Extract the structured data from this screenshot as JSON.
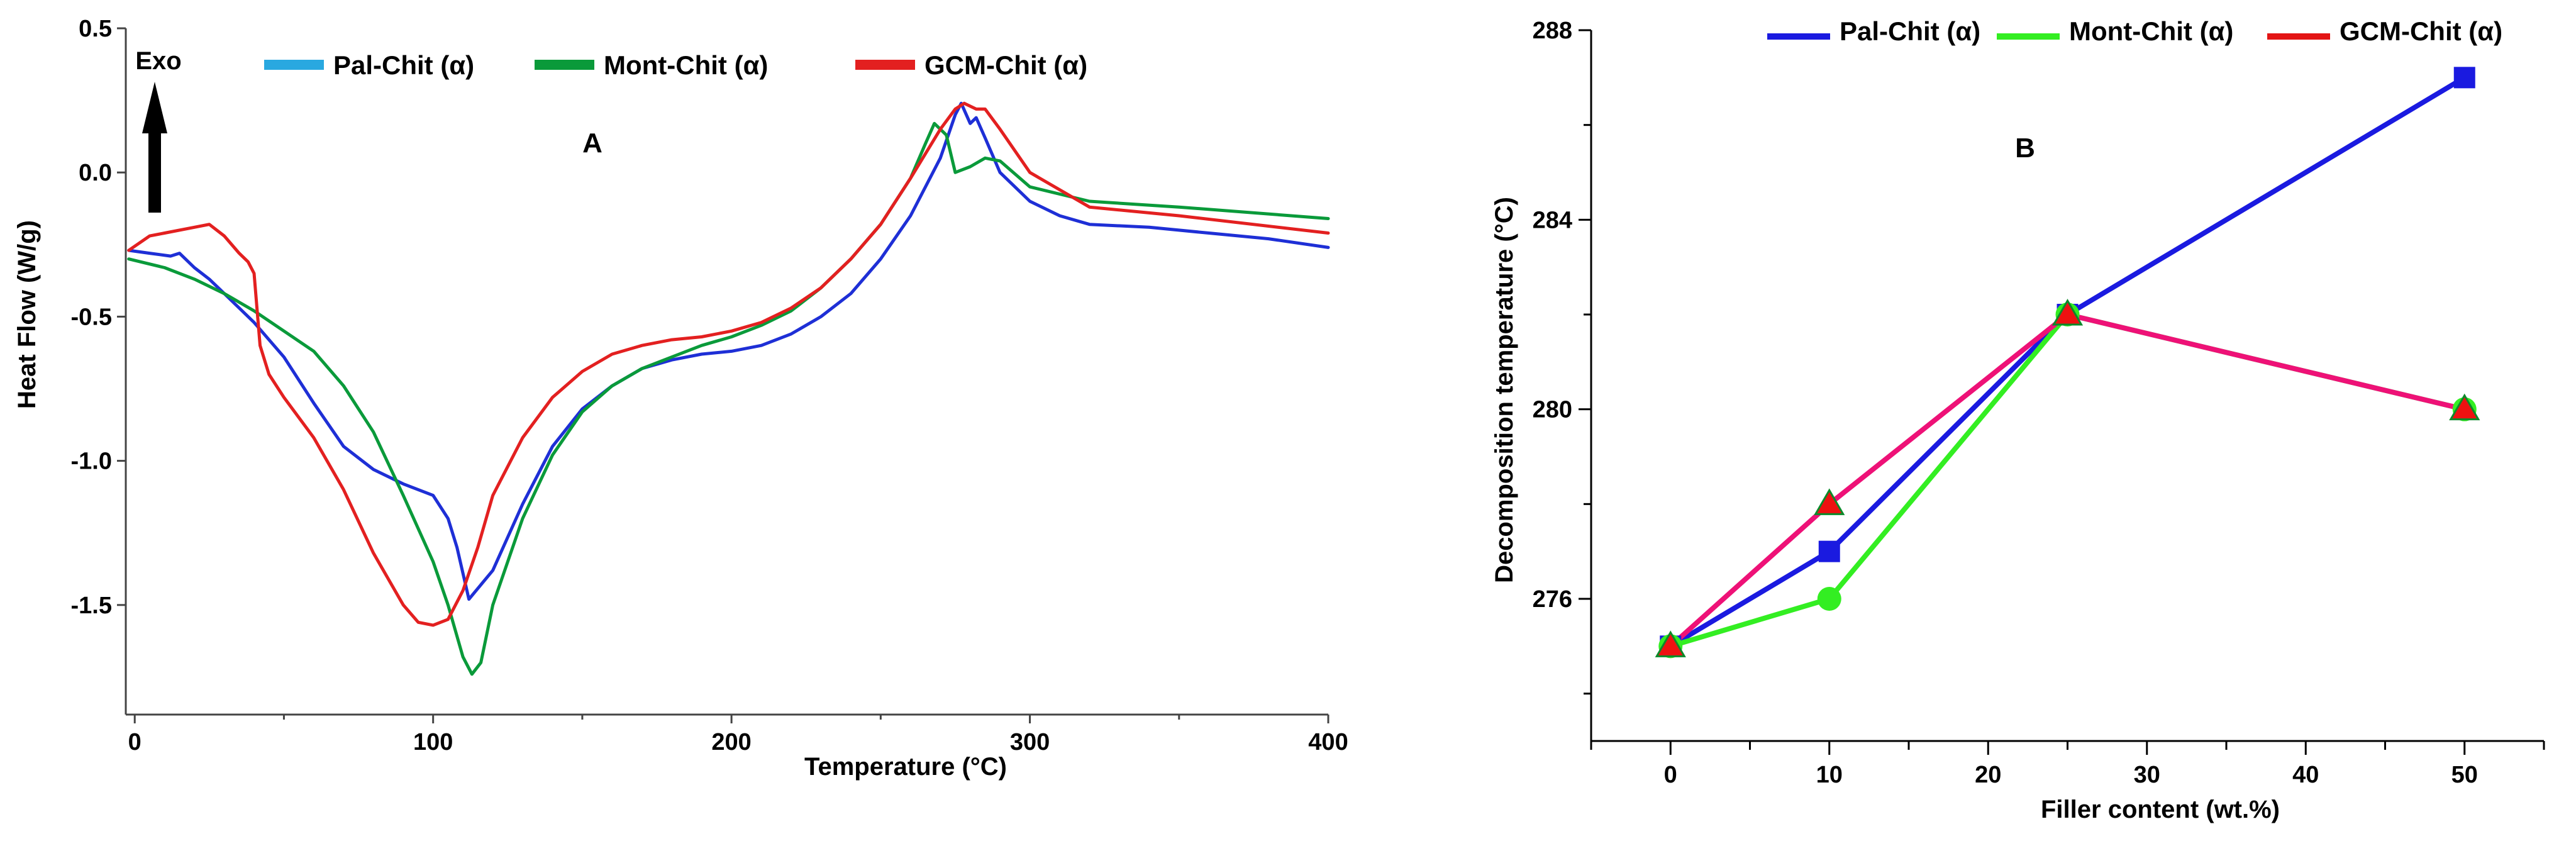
{
  "chart_data": [
    {
      "type": "line",
      "panel_label": "A",
      "xlabel": "Temperature (°C)",
      "ylabel": "Heat Flow  (W/g)",
      "xlim": [
        -3,
        400
      ],
      "ylim": [
        -1.88,
        0.5
      ],
      "x_ticks": [
        0,
        100,
        200,
        300,
        400
      ],
      "x_tick_labels": [
        "0",
        "100",
        "200",
        "300",
        "400"
      ],
      "y_ticks": [
        0.5,
        0.0,
        -0.5,
        -1.0,
        -1.5
      ],
      "y_tick_labels": [
        "0.5",
        "0.0",
        "-0.5",
        "-1.0",
        "-1.5"
      ],
      "annotation": "Exo",
      "grid": false,
      "legend_position": "top",
      "series": [
        {
          "name": "Pal-Chit (α)",
          "color": "#1e2fd6",
          "legend_color": "#29a8e0",
          "x": [
            -2,
            5,
            12,
            15,
            20,
            25,
            30,
            40,
            50,
            60,
            70,
            80,
            90,
            100,
            105,
            108,
            112,
            120,
            130,
            140,
            150,
            160,
            170,
            180,
            190,
            200,
            210,
            220,
            230,
            240,
            250,
            260,
            270,
            275,
            277,
            280,
            282,
            285,
            290,
            300,
            310,
            320,
            340,
            360,
            380,
            400
          ],
          "y": [
            -0.27,
            -0.28,
            -0.29,
            -0.28,
            -0.33,
            -0.37,
            -0.42,
            -0.52,
            -0.64,
            -0.8,
            -0.95,
            -1.03,
            -1.08,
            -1.12,
            -1.2,
            -1.3,
            -1.48,
            -1.38,
            -1.15,
            -0.95,
            -0.82,
            -0.74,
            -0.68,
            -0.65,
            -0.63,
            -0.62,
            -0.6,
            -0.56,
            -0.5,
            -0.42,
            -0.3,
            -0.15,
            0.05,
            0.2,
            0.24,
            0.17,
            0.19,
            0.12,
            0.0,
            -0.1,
            -0.15,
            -0.18,
            -0.19,
            -0.21,
            -0.23,
            -0.26
          ]
        },
        {
          "name": "Mont-Chit (α)",
          "color": "#0a9a3a",
          "legend_color": "#0a9a3a",
          "x": [
            -2,
            10,
            20,
            30,
            40,
            50,
            60,
            70,
            80,
            90,
            100,
            105,
            110,
            113,
            116,
            120,
            130,
            140,
            150,
            160,
            170,
            180,
            190,
            200,
            210,
            220,
            230,
            240,
            250,
            260,
            265,
            268,
            272,
            275,
            280,
            285,
            290,
            300,
            320,
            350,
            400
          ],
          "y": [
            -0.3,
            -0.33,
            -0.37,
            -0.42,
            -0.48,
            -0.55,
            -0.62,
            -0.74,
            -0.9,
            -1.12,
            -1.35,
            -1.5,
            -1.68,
            -1.74,
            -1.7,
            -1.5,
            -1.2,
            -0.98,
            -0.83,
            -0.74,
            -0.68,
            -0.64,
            -0.6,
            -0.57,
            -0.53,
            -0.48,
            -0.4,
            -0.3,
            -0.18,
            -0.02,
            0.1,
            0.17,
            0.13,
            0.0,
            0.02,
            0.05,
            0.04,
            -0.05,
            -0.1,
            -0.12,
            -0.16
          ]
        },
        {
          "name": "GCM-Chit (α)",
          "color": "#e32020",
          "legend_color": "#e32020",
          "x": [
            -2,
            5,
            10,
            20,
            25,
            30,
            35,
            38,
            40,
            42,
            45,
            50,
            60,
            70,
            80,
            90,
            95,
            100,
            105,
            110,
            115,
            120,
            130,
            140,
            150,
            160,
            170,
            180,
            190,
            200,
            210,
            220,
            230,
            240,
            250,
            260,
            270,
            275,
            278,
            282,
            285,
            290,
            300,
            320,
            350,
            400
          ],
          "y": [
            -0.27,
            -0.22,
            -0.21,
            -0.19,
            -0.18,
            -0.22,
            -0.28,
            -0.31,
            -0.35,
            -0.6,
            -0.7,
            -0.78,
            -0.92,
            -1.1,
            -1.32,
            -1.5,
            -1.56,
            -1.57,
            -1.55,
            -1.45,
            -1.3,
            -1.12,
            -0.92,
            -0.78,
            -0.69,
            -0.63,
            -0.6,
            -0.58,
            -0.57,
            -0.55,
            -0.52,
            -0.47,
            -0.4,
            -0.3,
            -0.18,
            -0.02,
            0.15,
            0.22,
            0.24,
            0.22,
            0.22,
            0.15,
            0.0,
            -0.12,
            -0.15,
            -0.21
          ]
        }
      ]
    },
    {
      "type": "line",
      "panel_label": "B",
      "xlabel": "Filler content (wt.%)",
      "ylabel": "Decomposition  temperature (°C)",
      "xlim": [
        -5,
        55
      ],
      "ylim": [
        273,
        288
      ],
      "x_ticks": [
        0,
        10,
        20,
        30,
        40,
        50
      ],
      "x_tick_labels": [
        "0",
        "10",
        "20",
        "30",
        "40",
        "50"
      ],
      "y_ticks": [
        276,
        280,
        284,
        288
      ],
      "y_tick_labels": [
        "276",
        "280",
        "284",
        "288"
      ],
      "grid": false,
      "legend_position": "top",
      "series": [
        {
          "name": "Pal-Chit (α)",
          "color": "#1a1ae0",
          "marker": "square",
          "marker_color": "#1a1ae0",
          "x": [
            0,
            10,
            25,
            50
          ],
          "y": [
            275,
            277,
            282,
            287
          ]
        },
        {
          "name": "Mont-Chit (α)",
          "color": "#33ee22",
          "marker": "circle",
          "marker_color": "#33ee22",
          "x": [
            0,
            10,
            25,
            50
          ],
          "y": [
            275,
            276,
            282,
            280
          ]
        },
        {
          "name": "GCM-Chit (α)",
          "color": "#ee1177",
          "legend_color": "#e31515",
          "marker": "triangle",
          "marker_color": "#ee1111",
          "x": [
            0,
            10,
            25,
            50
          ],
          "y": [
            275,
            278,
            282,
            280
          ]
        }
      ]
    }
  ]
}
